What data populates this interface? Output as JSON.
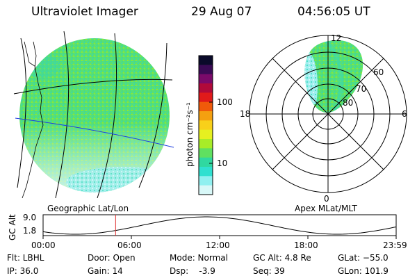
{
  "header": {
    "instrument": "Ultraviolet Imager",
    "date": "29 Aug 07",
    "time": "04:56:05 UT"
  },
  "colorbar": {
    "label": "photon cm⁻²s⁻¹",
    "ticks": [
      "100",
      "10"
    ],
    "colors": [
      "#0a0a2a",
      "#3a0a55",
      "#7a0a6a",
      "#b00a3a",
      "#e01a1a",
      "#f05a0a",
      "#f4a010",
      "#f8d01a",
      "#e6f020",
      "#a8ec28",
      "#60e060",
      "#30d8a0",
      "#30e0d0",
      "#90f0f0",
      "#d8f8f8"
    ]
  },
  "geo_panel": {
    "caption": "Geographic Lat/Lon",
    "grid_color": "#000000",
    "equator_color": "#1f3fe0",
    "fill_color": "#58e070"
  },
  "polar_panel": {
    "caption": "Apex MLat/MLT",
    "mlt_labels": {
      "top": "12",
      "left": "18",
      "right": "6",
      "bottom": "0"
    },
    "lat_labels": [
      "60",
      "70",
      "80"
    ]
  },
  "altitude_plot": {
    "ylabel": "GC Alt",
    "yticks": [
      "9.0",
      "1.8"
    ],
    "xticks": [
      "00:00",
      "06:00",
      "12:00",
      "18:00",
      "23:59"
    ],
    "current_time_hours": 4.93,
    "marker_color": "#e03030"
  },
  "footer": {
    "flt": "Flt: LBHL",
    "ip": "IP: 36.0",
    "door": "Door: Open",
    "gain": "Gain: 14",
    "mode": "Mode: Normal",
    "dsp": "Dsp:    -3.9",
    "gc_alt": "GC Alt: 4.8 Re",
    "seq": "Seq: 39",
    "glat": "GLat: −55.0",
    "glon": "GLon: 101.9"
  }
}
